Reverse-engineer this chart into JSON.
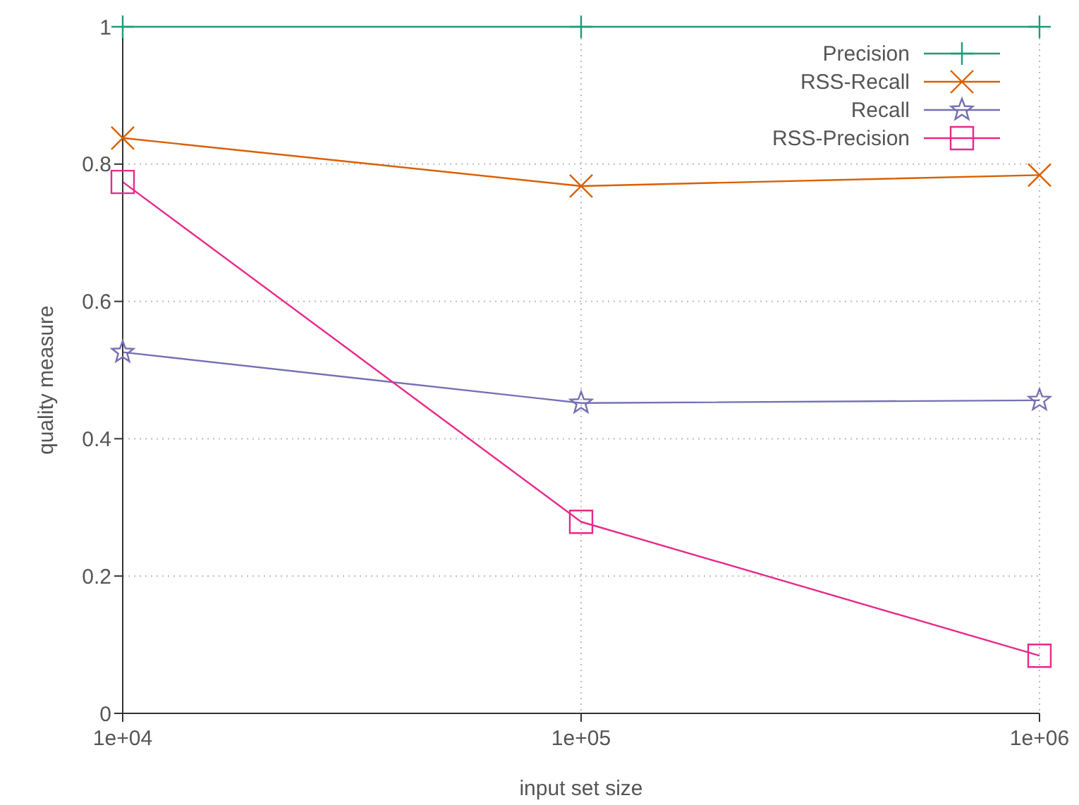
{
  "chart_data": {
    "type": "line",
    "xlabel": "input set size",
    "ylabel": "quality measure",
    "x": [
      10000,
      100000,
      1000000
    ],
    "log": "x",
    "xlim": [
      10000,
      1000000
    ],
    "xticks": [
      {
        "value": 10000,
        "label": "1e+04"
      },
      {
        "value": 100000,
        "label": "1e+05"
      },
      {
        "value": 1000000,
        "label": "1e+06"
      }
    ],
    "ylim": [
      0,
      1
    ],
    "yticks": [
      0,
      0.2,
      0.4,
      0.6,
      0.8,
      1
    ],
    "grid": true,
    "legend": "top right",
    "line_style": "solid",
    "series": [
      {
        "name": "Precision",
        "color": "#1b9e77",
        "marker": "plus",
        "values": [
          1,
          1,
          1
        ]
      },
      {
        "name": "RSS-Recall",
        "color": "#d95f02",
        "marker": "cross",
        "values": [
          0.838,
          0.768,
          0.784
        ]
      },
      {
        "name": "Recall",
        "color": "#7570b3",
        "marker": "star",
        "values": [
          0.526,
          0.452,
          0.456
        ]
      },
      {
        "name": "RSS-Precision",
        "color": "#e7298a",
        "marker": "square",
        "values": [
          0.774,
          0.279,
          0.084
        ]
      }
    ]
  }
}
